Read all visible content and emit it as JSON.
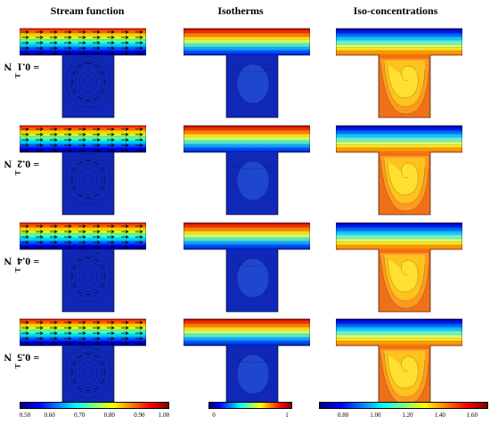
{
  "columns": [
    {
      "key": "stream",
      "title": "Stream function"
    },
    {
      "key": "isotherms",
      "title": "Isotherms"
    },
    {
      "key": "concentration",
      "title": "Iso-concentrations"
    }
  ],
  "rows": [
    {
      "label_main": "N",
      "label_sub": "T",
      "label_value": " = 0.1"
    },
    {
      "label_main": "N",
      "label_sub": "T",
      "label_value": " = 0.2"
    },
    {
      "label_main": "N",
      "label_sub": "T",
      "label_value": " = 0.4"
    },
    {
      "label_main": "N",
      "label_sub": "T",
      "label_value": " = 0.5"
    }
  ],
  "colorbars": {
    "stream": {
      "ticks": [
        "0.50",
        "0.60",
        "0.70",
        "0.80",
        "0.90",
        "1.00"
      ],
      "min": 0.5,
      "max": 1.0
    },
    "isotherms": {
      "ticks": [
        "0",
        "1"
      ],
      "min": 0,
      "max": 1
    },
    "concentration": {
      "ticks": [
        "0.80",
        "1.00",
        "1.20",
        "1.40",
        "1.60"
      ],
      "min": 0.65,
      "max": 1.7
    }
  },
  "colors": {
    "jet": [
      "#00007f",
      "#0000ff",
      "#007fff",
      "#00ffff",
      "#7fff7f",
      "#ffff00",
      "#ff7f00",
      "#ff0000",
      "#7f0000"
    ],
    "cavity_blue": "#1028b8",
    "cavity_orange": "#f07018"
  }
}
